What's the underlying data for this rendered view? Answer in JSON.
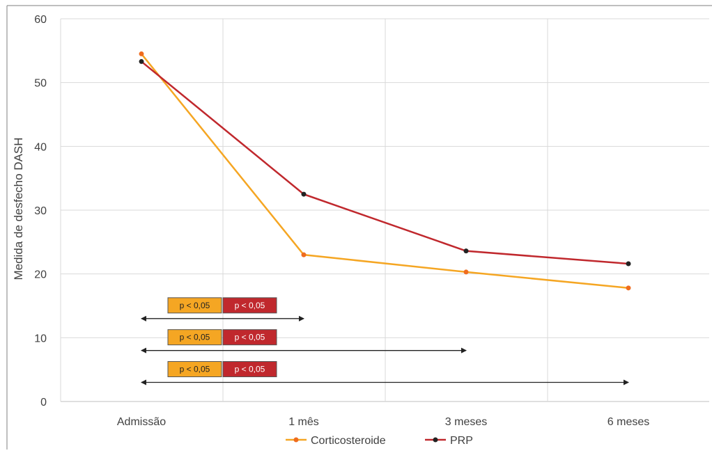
{
  "chart_data": {
    "type": "line",
    "ylabel": "Medida de desfecho DASH",
    "xlabel": "",
    "title": "",
    "categories": [
      "Admissão",
      "1 mês",
      "3 meses",
      "6 meses"
    ],
    "ylim": [
      0,
      60
    ],
    "yticks": [
      0,
      10,
      20,
      30,
      40,
      50,
      60
    ],
    "grid": true,
    "legend_position": "bottom",
    "series": [
      {
        "name": "Corticosteroide",
        "color": "#f5a623",
        "marker_color": "#ef6c1f",
        "values": [
          54.5,
          23,
          20.3,
          17.8
        ]
      },
      {
        "name": "PRP",
        "color": "#c0282d",
        "marker_color": "#222222",
        "values": [
          53.3,
          32.5,
          23.6,
          21.6
        ]
      }
    ],
    "annotations": [
      {
        "from": "Admissão",
        "to": "1 mês",
        "y": 13,
        "labels": [
          "p < 0,05",
          "p < 0,05"
        ]
      },
      {
        "from": "Admissão",
        "to": "3 meses",
        "y": 8,
        "labels": [
          "p < 0,05",
          "p < 0,05"
        ]
      },
      {
        "from": "Admissão",
        "to": "6 meses",
        "y": 3,
        "labels": [
          "p < 0,05",
          "p < 0,05"
        ]
      }
    ],
    "annotation_colors": [
      "#f5a623",
      "#c0282d"
    ]
  }
}
